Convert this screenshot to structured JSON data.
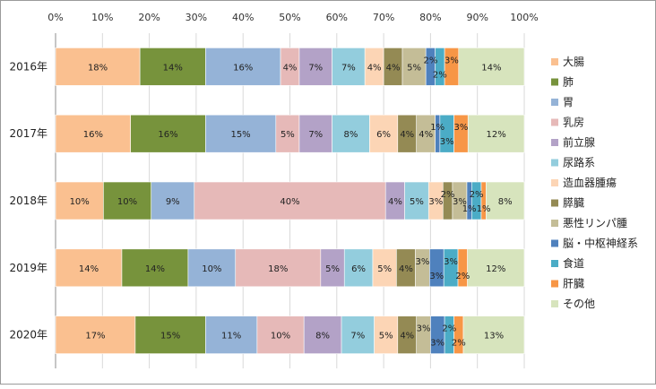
{
  "chart_data": {
    "type": "bar",
    "orientation": "horizontal",
    "stacked": "percent",
    "title": "",
    "xlabel": "",
    "ylabel": "",
    "xlim": [
      0,
      100
    ],
    "x_ticks": [
      "0%",
      "10%",
      "20%",
      "30%",
      "40%",
      "50%",
      "60%",
      "70%",
      "80%",
      "90%",
      "100%"
    ],
    "x_tick_position": "top",
    "grid": "vertical",
    "legend_position": "right",
    "categories": [
      "2016年",
      "2017年",
      "2018年",
      "2019年",
      "2020年"
    ],
    "series": [
      {
        "name": "大腸",
        "color": "#FAC090",
        "values": [
          18,
          16,
          10,
          14,
          17
        ],
        "labels": [
          "18%",
          "16%",
          "10%",
          "14%",
          "17%"
        ]
      },
      {
        "name": "肺",
        "color": "#77933C",
        "values": [
          14,
          16,
          10,
          14,
          15
        ],
        "labels": [
          "14%",
          "16%",
          "10%",
          "14%",
          "15%"
        ]
      },
      {
        "name": "胃",
        "color": "#95B3D7",
        "values": [
          16,
          15,
          9,
          10,
          11
        ],
        "labels": [
          "16%",
          "15%",
          "9%",
          "10%",
          "11%"
        ]
      },
      {
        "name": "乳房",
        "color": "#E6B9B8",
        "values": [
          4,
          5,
          40,
          18,
          10
        ],
        "labels": [
          "4%",
          "5%",
          "40%",
          "18%",
          "10%"
        ]
      },
      {
        "name": "前立腺",
        "color": "#B3A2C7",
        "values": [
          7,
          7,
          4,
          5,
          8
        ],
        "labels": [
          "7%",
          "7%",
          "4%",
          "5%",
          "8%"
        ]
      },
      {
        "name": "尿路系",
        "color": "#93CDDD",
        "values": [
          7,
          8,
          5,
          6,
          7
        ],
        "labels": [
          "7%",
          "8%",
          "5%",
          "6%",
          "7%"
        ]
      },
      {
        "name": "造血器腫瘍",
        "color": "#FCD5B5",
        "values": [
          4,
          6,
          3,
          5,
          5
        ],
        "labels": [
          "4%",
          "6%",
          "3%",
          "5%",
          "5%"
        ]
      },
      {
        "name": "膵臓",
        "color": "#948A54",
        "values": [
          4,
          4,
          2,
          4,
          4
        ],
        "labels": [
          "4%",
          "4%",
          "2%",
          "4%",
          "4%"
        ]
      },
      {
        "name": "悪性リンパ腫",
        "color": "#C4BD97",
        "values": [
          5,
          4,
          3,
          3,
          3
        ],
        "labels": [
          "5%",
          "4%",
          "3%",
          "3%",
          "3%"
        ]
      },
      {
        "name": "脳・中枢神経系",
        "color": "#4F81BD",
        "values": [
          2,
          1,
          1,
          3,
          3
        ],
        "labels": [
          "2%",
          "1%",
          "1%",
          "3%",
          "3%"
        ]
      },
      {
        "name": "食道",
        "color": "#4BACC6",
        "values": [
          2,
          3,
          2,
          3,
          2
        ],
        "labels": [
          "2%",
          "3%",
          "2%",
          "3%",
          "2%"
        ]
      },
      {
        "name": "肝臓",
        "color": "#F79646",
        "values": [
          3,
          3,
          1,
          2,
          2
        ],
        "labels": [
          "3%",
          "3%",
          "1%",
          "2%",
          "2%"
        ]
      },
      {
        "name": "その他",
        "color": "#D7E4BD",
        "values": [
          14,
          12,
          8,
          12,
          13
        ],
        "labels": [
          "14%",
          "12%",
          "8%",
          "12%",
          "13%"
        ]
      }
    ]
  }
}
